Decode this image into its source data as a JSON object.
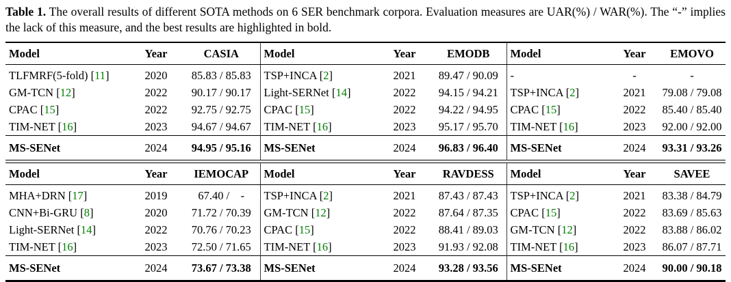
{
  "caption": {
    "label": "Table 1.",
    "text": "  The overall results of different SOTA methods on 6 SER benchmark corpora.  Evaluation measures are UAR(%) / WAR(%). The “-” implies the lack of this measure, and the best results are highlighted in bold."
  },
  "colors": {
    "citation": "#008000",
    "text": "#000000",
    "rule": "#000000"
  },
  "table": {
    "sections": [
      {
        "groups": [
          {
            "headers": {
              "model": "Model",
              "year": "Year",
              "corpus": "CASIA"
            },
            "rows": [
              {
                "model": "TLFMRF(5-fold)",
                "ref": "11",
                "year": "2020",
                "score": "85.83 / 85.83"
              },
              {
                "model": "GM-TCN",
                "ref": "12",
                "year": "2022",
                "score": "90.17 / 90.17"
              },
              {
                "model": "CPAC",
                "ref": "15",
                "year": "2022",
                "score": "92.75 / 92.75"
              },
              {
                "model": "TIM-NET",
                "ref": "16",
                "year": "2023",
                "score": "94.67 / 94.67"
              }
            ],
            "ours": {
              "model": "MS-SENet",
              "year": "2024",
              "score": "94.95 / 95.16"
            }
          },
          {
            "headers": {
              "model": "Model",
              "year": "Year",
              "corpus": "EMODB"
            },
            "rows": [
              {
                "model": "TSP+INCA",
                "ref": "2",
                "year": "2021",
                "score": "89.47 / 90.09"
              },
              {
                "model": "Light-SERNet",
                "ref": "14",
                "year": "2022",
                "score": "94.15 / 94.21"
              },
              {
                "model": "CPAC",
                "ref": "15",
                "year": "2022",
                "score": "94.22 / 94.95"
              },
              {
                "model": "TIM-NET",
                "ref": "16",
                "year": "2023",
                "score": "95.17 / 95.70"
              }
            ],
            "ours": {
              "model": "MS-SENet",
              "year": "2024",
              "score": "96.83 / 96.40"
            }
          },
          {
            "headers": {
              "model": "Model",
              "year": "Year",
              "corpus": "EMOVO"
            },
            "rows": [
              {
                "model": "-",
                "ref": null,
                "year": "-",
                "score": "-"
              },
              {
                "model": "TSP+INCA",
                "ref": "2",
                "year": "2021",
                "score": "79.08 / 79.08"
              },
              {
                "model": "CPAC",
                "ref": "15",
                "year": "2022",
                "score": "85.40 / 85.40"
              },
              {
                "model": "TIM-NET",
                "ref": "16",
                "year": "2023",
                "score": "92.00 / 92.00"
              }
            ],
            "ours": {
              "model": "MS-SENet",
              "year": "2024",
              "score": "93.31 / 93.26"
            }
          }
        ]
      },
      {
        "groups": [
          {
            "headers": {
              "model": "Model",
              "year": "Year",
              "corpus": "IEMOCAP"
            },
            "rows": [
              {
                "model": "MHA+DRN",
                "ref": "17",
                "year": "2019",
                "score": "67.40 /    -"
              },
              {
                "model": "CNN+Bi-GRU",
                "ref": "8",
                "year": "2020",
                "score": "71.72 / 70.39"
              },
              {
                "model": "Light-SERNet",
                "ref": "14",
                "year": "2022",
                "score": "70.76 / 70.23"
              },
              {
                "model": "TIM-NET",
                "ref": "16",
                "year": "2023",
                "score": "72.50 / 71.65"
              }
            ],
            "ours": {
              "model": "MS-SENet",
              "year": "2024",
              "score": "73.67 / 73.38"
            }
          },
          {
            "headers": {
              "model": "Model",
              "year": "Year",
              "corpus": "RAVDESS"
            },
            "rows": [
              {
                "model": "TSP+INCA",
                "ref": "2",
                "year": "2021",
                "score": "87.43 / 87.43"
              },
              {
                "model": "GM-TCN",
                "ref": "12",
                "year": "2022",
                "score": "87.64 / 87.35"
              },
              {
                "model": "CPAC",
                "ref": "15",
                "year": "2022",
                "score": "88.41 / 89.03"
              },
              {
                "model": "TIM-NET",
                "ref": "16",
                "year": "2023",
                "score": "91.93 / 92.08"
              }
            ],
            "ours": {
              "model": "MS-SENet",
              "year": "2024",
              "score": "93.28 / 93.56"
            }
          },
          {
            "headers": {
              "model": "Model",
              "year": "Year",
              "corpus": "SAVEE"
            },
            "rows": [
              {
                "model": "TSP+INCA",
                "ref": "2",
                "year": "2021",
                "score": "83.38 / 84.79"
              },
              {
                "model": "CPAC",
                "ref": "15",
                "year": "2022",
                "score": "83.69 / 85.63"
              },
              {
                "model": "GM-TCN",
                "ref": "12",
                "year": "2022",
                "score": "83.88 / 86.02"
              },
              {
                "model": "TIM-NET",
                "ref": "16",
                "year": "2023",
                "score": "86.07 / 87.71"
              }
            ],
            "ours": {
              "model": "MS-SENet",
              "year": "2024",
              "score": "90.00 / 90.18"
            }
          }
        ]
      }
    ]
  }
}
